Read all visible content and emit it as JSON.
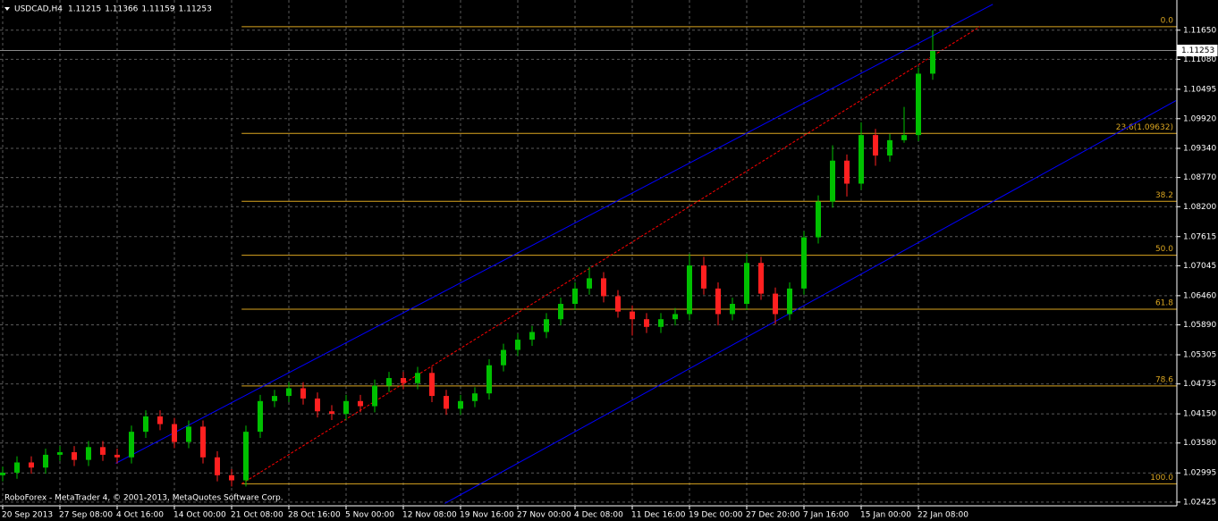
{
  "chart_data": {
    "type": "candlestick",
    "title": "USDCAD,H4",
    "ohlc_readout": [
      1.11215,
      1.11366,
      1.11159,
      1.11253
    ],
    "footer": "RoboForex - MetaTrader 4, © 2001-2013, MetaQuotes Software Corp.",
    "categories": [
      "20 Sep 2013",
      null,
      null,
      null,
      "27 Sep 08:00",
      null,
      null,
      null,
      "4 Oct 16:00",
      null,
      null,
      null,
      "14 Oct 00:00",
      null,
      null,
      null,
      "21 Oct 08:00",
      null,
      null,
      null,
      "28 Oct 16:00",
      null,
      null,
      null,
      "5 Nov 00:00",
      null,
      null,
      null,
      "12 Nov 08:00",
      null,
      null,
      null,
      "19 Nov 16:00",
      null,
      null,
      null,
      "27 Nov 00:00",
      null,
      null,
      null,
      "4 Dec 08:00",
      null,
      null,
      null,
      "11 Dec 16:00",
      null,
      null,
      null,
      "19 Dec 00:00",
      null,
      null,
      null,
      "27 Dec 20:00",
      null,
      null,
      null,
      "7 Jan 16:00",
      null,
      null,
      null,
      "15 Jan 00:00",
      null,
      null,
      null,
      "22 Jan 08:00",
      null
    ],
    "open": [
      1.0295,
      1.03,
      1.032,
      1.031,
      1.0335,
      1.034,
      1.0325,
      1.035,
      1.0335,
      1.033,
      1.038,
      1.041,
      1.0395,
      1.036,
      1.039,
      1.033,
      1.0295,
      1.0285,
      1.038,
      1.044,
      1.045,
      1.0465,
      1.0445,
      1.042,
      1.0415,
      1.044,
      1.043,
      1.047,
      1.0485,
      1.0475,
      1.0495,
      1.045,
      1.0425,
      1.044,
      1.0455,
      1.051,
      1.054,
      1.056,
      1.0575,
      1.06,
      1.063,
      1.066,
      1.068,
      1.0645,
      1.0615,
      1.06,
      1.0585,
      1.06,
      1.061,
      1.0705,
      1.066,
      1.061,
      1.063,
      1.071,
      1.065,
      1.061,
      1.066,
      1.076,
      1.083,
      1.091,
      1.0865,
      1.096,
      1.092,
      1.095,
      1.096,
      1.108
    ],
    "high": [
      1.0312,
      1.0332,
      1.0332,
      1.0347,
      1.0352,
      1.0352,
      1.0362,
      1.0362,
      1.0347,
      1.0392,
      1.0422,
      1.0422,
      1.0407,
      1.0402,
      1.0402,
      1.0342,
      1.0307,
      1.0392,
      1.0452,
      1.0462,
      1.0477,
      1.0477,
      1.0457,
      1.0432,
      1.0452,
      1.0452,
      1.0482,
      1.0497,
      1.0497,
      1.0507,
      1.0507,
      1.0462,
      1.0452,
      1.0467,
      1.0522,
      1.0552,
      1.0572,
      1.0587,
      1.0612,
      1.0642,
      1.0672,
      1.0702,
      1.0692,
      1.0657,
      1.0627,
      1.0612,
      1.0612,
      1.0622,
      1.0728,
      1.0722,
      1.0672,
      1.0642,
      1.0728,
      1.0722,
      1.0662,
      1.0672,
      1.0772,
      1.0842,
      1.094,
      1.0922,
      1.0985,
      1.0972,
      1.0962,
      1.1015,
      1.1092,
      1.1165
    ],
    "low": [
      1.0283,
      1.0288,
      1.0298,
      1.0298,
      1.0323,
      1.0313,
      1.0313,
      1.0323,
      1.0318,
      1.0318,
      1.0368,
      1.0383,
      1.0348,
      1.0348,
      1.0318,
      1.0283,
      1.0273,
      1.0273,
      1.0368,
      1.0428,
      1.0438,
      1.0433,
      1.0408,
      1.0403,
      1.0403,
      1.0418,
      1.0418,
      1.0458,
      1.0463,
      1.0463,
      1.0438,
      1.0413,
      1.0413,
      1.0428,
      1.0443,
      1.0498,
      1.0528,
      1.0548,
      1.0563,
      1.0588,
      1.0618,
      1.0648,
      1.0633,
      1.0603,
      1.0568,
      1.0573,
      1.0573,
      1.0588,
      1.0598,
      1.0648,
      1.0588,
      1.0598,
      1.0618,
      1.0638,
      1.059,
      1.0598,
      1.0648,
      1.0748,
      1.0818,
      1.084,
      1.0853,
      1.09,
      1.0908,
      1.0945,
      1.0948,
      1.1068
    ],
    "close": [
      1.03,
      1.032,
      1.031,
      1.0335,
      1.034,
      1.0325,
      1.035,
      1.0335,
      1.033,
      1.038,
      1.041,
      1.0395,
      1.036,
      1.039,
      1.033,
      1.0295,
      1.0285,
      1.038,
      1.044,
      1.045,
      1.0465,
      1.0445,
      1.042,
      1.0415,
      1.044,
      1.043,
      1.047,
      1.0485,
      1.0475,
      1.0495,
      1.045,
      1.0425,
      1.044,
      1.0455,
      1.051,
      1.054,
      1.056,
      1.0575,
      1.06,
      1.063,
      1.066,
      1.068,
      1.0645,
      1.0615,
      1.06,
      1.0585,
      1.06,
      1.061,
      1.0705,
      1.066,
      1.061,
      1.063,
      1.071,
      1.065,
      1.061,
      1.066,
      1.076,
      1.083,
      1.091,
      1.0865,
      1.096,
      1.092,
      1.095,
      1.096,
      1.108,
      1.1125
    ],
    "up_color": "#00c000",
    "down_color": "#ff2020",
    "ylim": [
      1.0237,
      1.1224
    ],
    "yticks": [
      {
        "value": 1.1165,
        "label": "1.11650"
      },
      {
        "value": 1.1108,
        "label": "1.11080"
      },
      1.10495,
      {
        "value": 1.0992,
        "label": "1.09920"
      },
      {
        "value": 1.0934,
        "label": "1.09340"
      },
      {
        "value": 1.0877,
        "label": "1.08770"
      },
      {
        "value": 1.082,
        "label": "1.08200"
      },
      1.07615,
      1.07045,
      {
        "value": 1.0646,
        "label": "1.06460"
      },
      {
        "value": 1.0589,
        "label": "1.05890"
      },
      1.05305,
      1.04735,
      {
        "value": 1.0415,
        "label": "1.04150"
      },
      {
        "value": 1.0358,
        "label": "1.03580"
      },
      1.02995,
      1.02425
    ],
    "grid": true,
    "current_price": 1.11253,
    "trendlines": [
      {
        "color": "#0000ff",
        "dashed": false,
        "x": [
          7.9,
          69.2
        ],
        "y": [
          1.03183,
          1.12155
        ]
      },
      {
        "color": "#0000ff",
        "dashed": false,
        "x": [
          30.9,
          82.0
        ],
        "y": [
          1.02399,
          1.10273
        ]
      },
      {
        "color": "#ff0000",
        "dashed": true,
        "x": [
          16.7,
          68.3
        ],
        "y": [
          1.02782,
          1.11719
        ]
      }
    ],
    "fibo": {
      "color": "#daa520",
      "start": 16.7,
      "levels": [
        {
          "label": "0.0",
          "price": 1.11719
        },
        {
          "label": "23.6(1.09632)",
          "price": 1.09632
        },
        {
          "label": "38.2",
          "price": 1.08305
        },
        {
          "label": "50.0",
          "price": 1.07251
        },
        {
          "label": "61.8",
          "price": 1.06196
        },
        {
          "label": "78.6",
          "price": 1.04695
        },
        {
          "label": "100.0",
          "price": 1.02782
        }
      ]
    }
  }
}
